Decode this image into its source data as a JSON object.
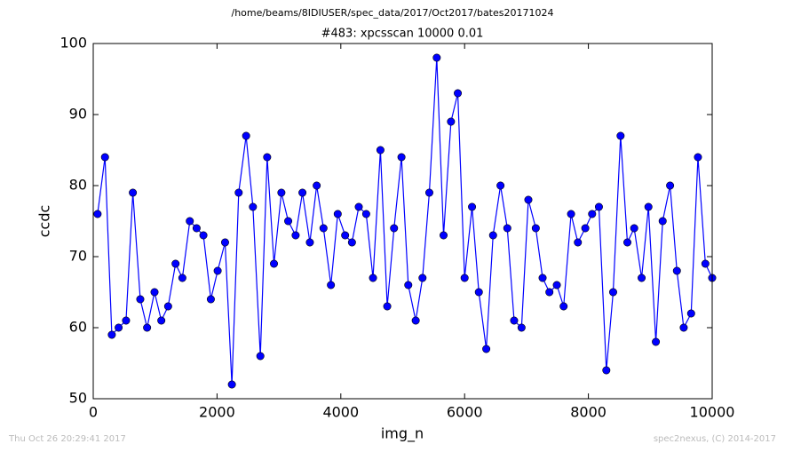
{
  "chart_data": {
    "type": "line",
    "suptitle": "/home/beams/8IDIUSER/spec_data/2017/Oct2017/bates20171024",
    "title": "#483: xpcsscan 10000 0.01",
    "xlabel": "img_n",
    "ylabel": "ccdc",
    "annotations": [
      "Thu Oct 26 20:29:41 2017",
      "spec2nexus, (C) 2014-2017"
    ],
    "x": [
      70,
      190,
      300,
      410,
      530,
      640,
      760,
      870,
      990,
      1100,
      1210,
      1330,
      1440,
      1560,
      1670,
      1780,
      1900,
      2010,
      2130,
      2240,
      2350,
      2470,
      2580,
      2700,
      2810,
      2920,
      3040,
      3150,
      3270,
      3380,
      3500,
      3610,
      3720,
      3840,
      3950,
      4070,
      4180,
      4290,
      4410,
      4520,
      4640,
      4750,
      4860,
      4980,
      5090,
      5210,
      5320,
      5430,
      5550,
      5660,
      5780,
      5890,
      6000,
      6120,
      6230,
      6350,
      6460,
      6580,
      6690,
      6800,
      6920,
      7030,
      7150,
      7260,
      7370,
      7490,
      7600,
      7720,
      7830,
      7950,
      8060,
      8170,
      8290,
      8400,
      8520,
      8630,
      8740,
      8860,
      8970,
      9090,
      9200,
      9320,
      9430,
      9540,
      9660,
      9770,
      9890,
      10000
    ],
    "series": [
      {
        "name": "ccdc",
        "color": "#0000ff",
        "values": [
          76,
          84,
          59,
          60,
          61,
          79,
          64,
          60,
          65,
          61,
          63,
          69,
          67,
          75,
          74,
          73,
          64,
          68,
          72,
          52,
          79,
          87,
          77,
          56,
          84,
          69,
          79,
          75,
          73,
          79,
          72,
          80,
          74,
          66,
          76,
          73,
          72,
          77,
          76,
          67,
          85,
          63,
          74,
          84,
          66,
          61,
          67,
          79,
          98,
          73,
          89,
          93,
          67,
          77,
          65,
          57,
          73,
          80,
          74,
          61,
          60,
          78,
          74,
          67,
          65,
          66,
          63,
          76,
          72,
          74,
          76,
          77,
          54,
          65,
          87,
          72,
          74,
          67,
          77,
          58,
          75,
          80,
          68,
          60,
          62,
          84,
          69,
          67
        ]
      }
    ],
    "xlim": [
      0,
      10000
    ],
    "ylim": [
      50,
      100
    ],
    "xticks": [
      0,
      2000,
      4000,
      6000,
      8000,
      10000
    ],
    "yticks": [
      50,
      60,
      70,
      80,
      90,
      100
    ],
    "grid": false
  }
}
